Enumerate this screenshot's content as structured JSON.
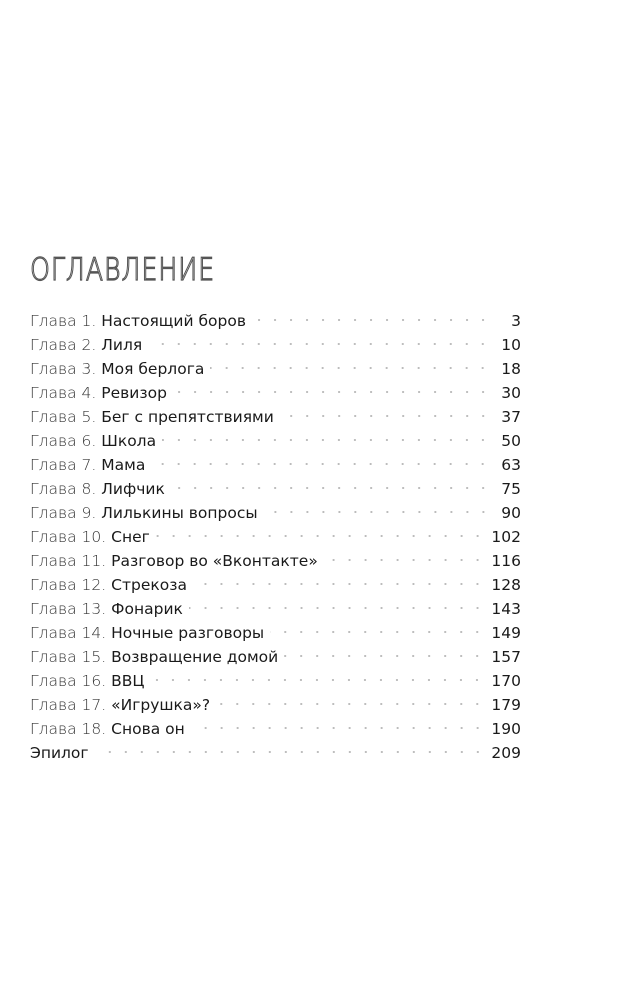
{
  "title": "ОГЛАВЛЕНИЕ",
  "entries": [
    {
      "label": "Глава 1. ",
      "name": "Настоящий боров",
      "page": "3"
    },
    {
      "label": "Глава 2. ",
      "name": "Лиля",
      "page": "10"
    },
    {
      "label": "Глава 3. ",
      "name": "Моя берлога",
      "page": "18"
    },
    {
      "label": "Глава 4. ",
      "name": "Ревизор",
      "page": "30"
    },
    {
      "label": "Глава 5. ",
      "name": "Бег с препятствиями",
      "page": "37"
    },
    {
      "label": "Глава 6. ",
      "name": "Школа",
      "page": "50"
    },
    {
      "label": "Глава 7. ",
      "name": "Мама",
      "page": "63"
    },
    {
      "label": "Глава 8. ",
      "name": "Лифчик",
      "page": "75"
    },
    {
      "label": "Глава 9. ",
      "name": "Лилькины вопросы",
      "page": "90"
    },
    {
      "label": "Глава 10. ",
      "name": "Снег",
      "page": "102"
    },
    {
      "label": "Глава 11. ",
      "name": "Разговор во «Вконтакте»",
      "page": "116"
    },
    {
      "label": "Глава 12. ",
      "name": "Стрекоза",
      "page": "128"
    },
    {
      "label": "Глава 13. ",
      "name": "Фонарик",
      "page": "143"
    },
    {
      "label": "Глава 14. ",
      "name": "Ночные разговоры",
      "page": "149"
    },
    {
      "label": "Глава 15. ",
      "name": "Возвращение домой",
      "page": "157"
    },
    {
      "label": "Глава 16. ",
      "name": "ВВЦ",
      "page": "170"
    },
    {
      "label": "Глава 17. ",
      "name": "«Игрушка»?",
      "page": "179"
    },
    {
      "label": "Глава 18. ",
      "name": "Снова он",
      "page": "190"
    },
    {
      "label": "",
      "name": "Эпилог",
      "page": "209"
    }
  ]
}
